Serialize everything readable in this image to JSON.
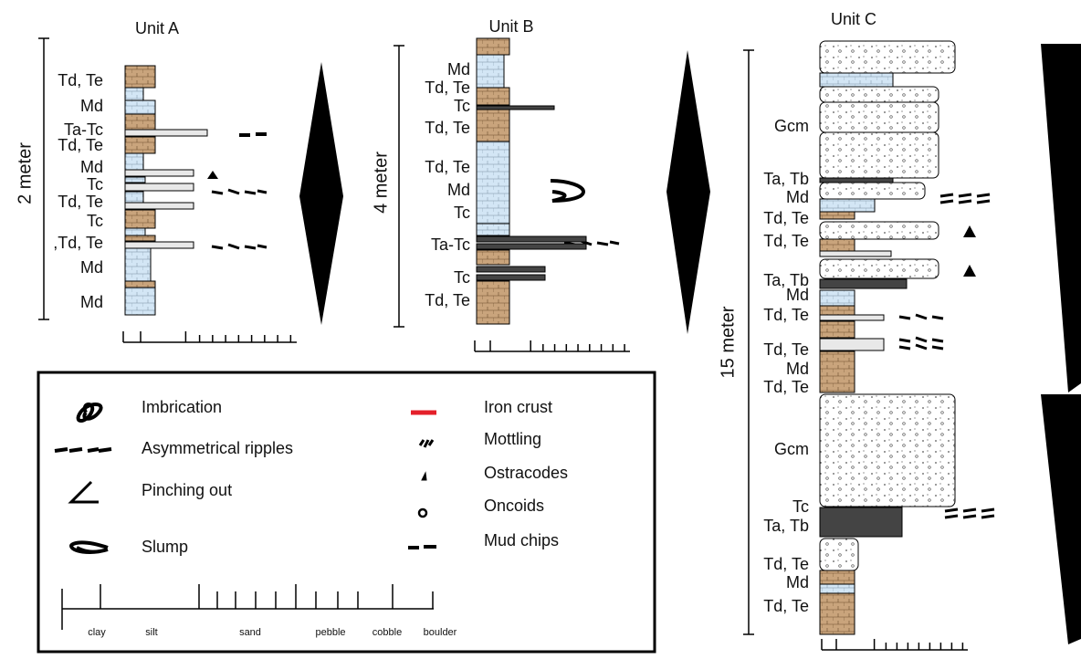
{
  "units": [
    {
      "title": "Unit A",
      "scale": "2 meter",
      "labels": [
        "Td, Te",
        "Md",
        "Ta-Tc",
        "Td, Te",
        "Md",
        "Tc",
        "Td, Te",
        "Tc",
        ",Td, Te",
        "Md",
        "Md"
      ]
    },
    {
      "title": "Unit B",
      "scale": "4 meter",
      "labels": [
        "Md",
        "Td, Te",
        "Tc",
        "Td, Te",
        "Td, Te",
        "Md",
        "Tc",
        "Ta-Tc",
        "Tc",
        "Td, Te"
      ]
    },
    {
      "title": "Unit C",
      "scale": "15 meter",
      "labels": [
        "Gcm",
        "Ta, Tb",
        "Md",
        "Td, Te",
        "Td, Te",
        "Ta, Tb",
        "Md",
        "Td, Te",
        "Td, Te",
        "Md",
        "Td, Te",
        "Gcm",
        "Tc",
        "Ta, Tb",
        "Td, Te",
        "Md",
        "Td, Te"
      ]
    }
  ],
  "legend": {
    "left": [
      "Imbrication",
      "Asymmetrical ripples",
      "Pinching out",
      "Slump"
    ],
    "right": [
      "Iron crust",
      "Mottling",
      "Ostracodes",
      "Oncoids",
      "Mud chips"
    ],
    "grain_sizes": [
      "clay",
      "silt",
      "sand",
      "pebble",
      "cobble",
      "boulder"
    ]
  }
}
